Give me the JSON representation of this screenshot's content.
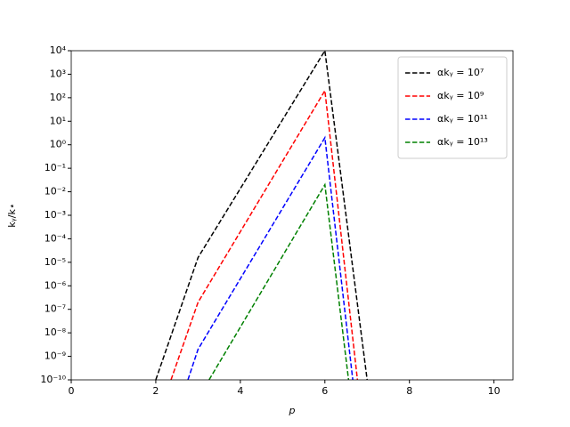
{
  "chart_data": {
    "type": "line",
    "xlabel": "p",
    "ylabel": "kᵧ/k⋆",
    "yscale": "log",
    "legend": "upper right",
    "linestyle": "dashed",
    "xlim": [
      0,
      10.45
    ],
    "ylim": [
      1e-10,
      10000
    ],
    "xticks": [
      0,
      2,
      4,
      6,
      8,
      10
    ],
    "yticks": [
      {
        "value": 1e-10,
        "label": "10⁻¹⁰"
      },
      {
        "value": 1e-09,
        "label": "10⁻⁹"
      },
      {
        "value": 1e-08,
        "label": "10⁻⁸"
      },
      {
        "value": 1e-07,
        "label": "10⁻⁷"
      },
      {
        "value": 1e-06,
        "label": "10⁻⁶"
      },
      {
        "value": 1e-05,
        "label": "10⁻⁵"
      },
      {
        "value": 0.0001,
        "label": "10⁻⁴"
      },
      {
        "value": 0.001,
        "label": "10⁻³"
      },
      {
        "value": 0.01,
        "label": "10⁻²"
      },
      {
        "value": 0.1,
        "label": "10⁻¹"
      },
      {
        "value": 1,
        "label": "10⁰"
      },
      {
        "value": 10,
        "label": "10¹"
      },
      {
        "value": 100,
        "label": "10²"
      },
      {
        "value": 1000,
        "label": "10³"
      },
      {
        "value": 10000,
        "label": "10⁴"
      }
    ],
    "series": [
      {
        "name": "αkᵧ = 10⁷",
        "color": "#000000",
        "x": [
          2,
          3,
          6,
          7
        ],
        "values": [
          1e-10,
          1.6e-05,
          10000,
          1e-10
        ]
      },
      {
        "name": "αkᵧ = 10⁹",
        "color": "#ff0000",
        "x": [
          2.36,
          3,
          6,
          6.77
        ],
        "values": [
          1e-10,
          2e-07,
          200,
          1e-10
        ]
      },
      {
        "name": "αkᵧ = 10¹¹",
        "color": "#0000ff",
        "x": [
          2.76,
          3,
          6,
          6.66
        ],
        "values": [
          1e-10,
          2e-09,
          2,
          1e-10
        ]
      },
      {
        "name": "αkᵧ = 10¹³",
        "color": "#008000",
        "x": [
          3.26,
          6,
          6.56
        ],
        "values": [
          1e-10,
          0.02,
          1e-10
        ]
      }
    ]
  }
}
